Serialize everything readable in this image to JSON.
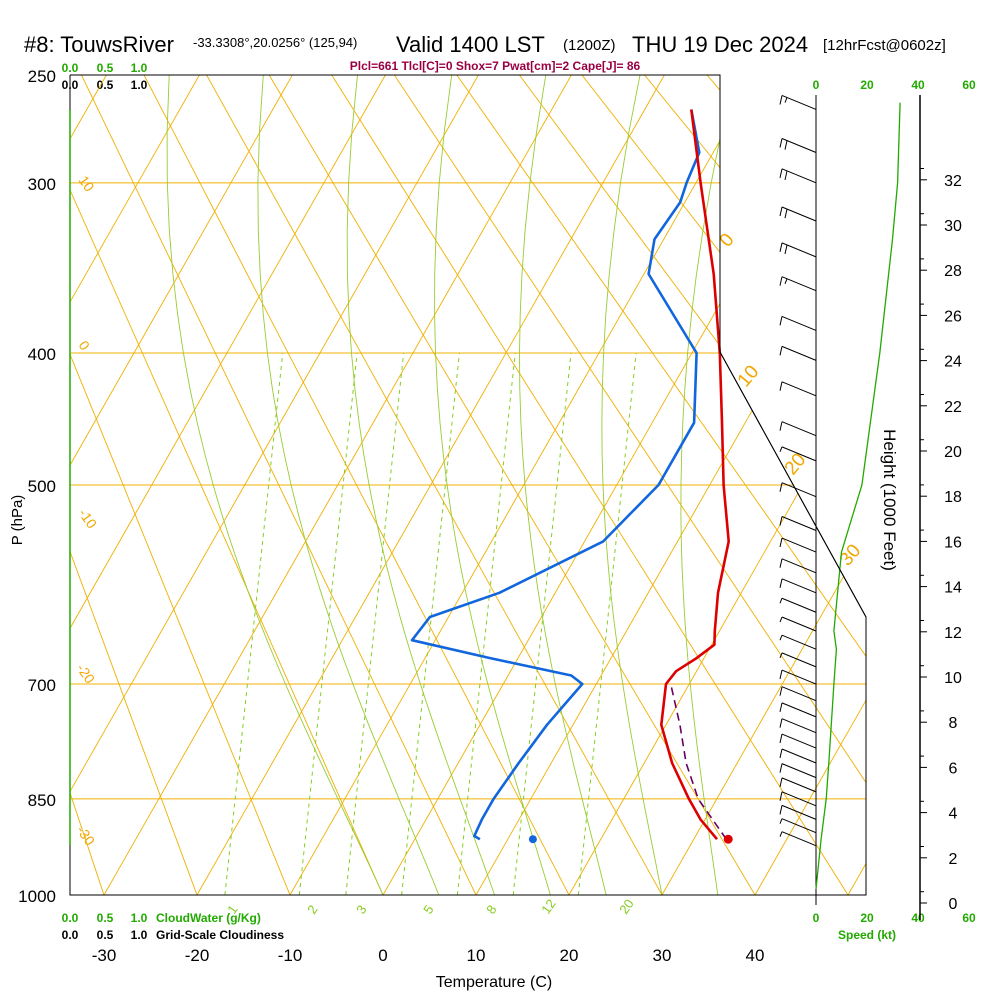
{
  "header": {
    "station": "#8: TouwsRiver",
    "coords": "-33.3308°,20.0256° (125,94)",
    "valid": "Valid 1400 LST",
    "zulu": "(1200Z)",
    "date": "THU 19 Dec 2024",
    "forecast": "[12hrFcst@0602z]",
    "indices": "Plcl=661 Tlcl[C]=0 Shox=7 Pwat[cm]=2 Cape[J]= 86"
  },
  "scales": {
    "cloudwater_ticks": [
      "0.0",
      "0.5",
      "1.0"
    ],
    "cloudiness_ticks": [
      "0.0",
      "0.5",
      "1.0"
    ],
    "cloudwater_label": "CloudWater (g/Kg)",
    "cloudiness_label": "Grid-Scale Cloudiness",
    "speed_ticks": [
      "0",
      "20",
      "40",
      "60"
    ],
    "speed_label": "Speed (kt)"
  },
  "colors": {
    "temperature": "#dd0000",
    "dewpoint": "#1166dd",
    "parcel": "#660066",
    "isotherm": "#f0b000",
    "mixing_ratio": "#88cc22",
    "moist_adiabat": "#99cc33",
    "green_text": "#22aa00",
    "indices": "#990044"
  },
  "chart_data": {
    "type": "skew-t",
    "title": "#8: TouwsRiver Valid 1400 LST (1200Z) THU 19 Dec 2024",
    "xlabel": "Temperature (C)",
    "ylabel": "P (hPa)",
    "y2label": "Height (1000 Feet)",
    "temperature_ticks": [
      -30,
      -20,
      -10,
      0,
      10,
      20,
      30,
      40
    ],
    "temperature_tick_labels": [
      "-30",
      "-20",
      "-10",
      "0",
      "10",
      "20",
      "30",
      "40"
    ],
    "pressure_levels": [
      250,
      300,
      400,
      500,
      700,
      850,
      1000
    ],
    "pressure_tick_labels": [
      "250",
      "300",
      "400",
      "500",
      "700",
      "850",
      "1000"
    ],
    "height_kft_ticks": [
      0,
      2,
      4,
      6,
      8,
      10,
      12,
      14,
      16,
      18,
      20,
      22,
      24,
      26,
      28,
      30,
      32
    ],
    "height_tick_labels": [
      "0",
      "2",
      "4",
      "6",
      "8",
      "10",
      "12",
      "14",
      "16",
      "18",
      "20",
      "22",
      "24",
      "26",
      "28",
      "30",
      "32"
    ],
    "isotherm_labels": [
      "10",
      "0",
      "-10",
      "-20",
      "-30",
      "0",
      "10",
      "20",
      "30"
    ],
    "mixing_ratio_labels": [
      "1",
      "2",
      "3",
      "5",
      "8",
      "12",
      "20"
    ],
    "temperature_profile": [
      {
        "p": 910,
        "t": 32.5
      },
      {
        "p": 880,
        "t": 29.5
      },
      {
        "p": 850,
        "t": 27.0
      },
      {
        "p": 800,
        "t": 23.0
      },
      {
        "p": 750,
        "t": 19.5
      },
      {
        "p": 700,
        "t": 17.5
      },
      {
        "p": 685,
        "t": 17.8
      },
      {
        "p": 670,
        "t": 19.2
      },
      {
        "p": 655,
        "t": 20.3
      },
      {
        "p": 640,
        "t": 19.5
      },
      {
        "p": 600,
        "t": 17.5
      },
      {
        "p": 550,
        "t": 15.5
      },
      {
        "p": 500,
        "t": 11.5
      },
      {
        "p": 450,
        "t": 7.5
      },
      {
        "p": 400,
        "t": 3.0
      },
      {
        "p": 350,
        "t": -2.5
      },
      {
        "p": 300,
        "t": -9.5
      },
      {
        "p": 265,
        "t": -15.0
      }
    ],
    "dewpoint_profile": [
      {
        "p": 910,
        "t": 7.0
      },
      {
        "p": 905,
        "t": 6.2
      },
      {
        "p": 880,
        "t": 6.0
      },
      {
        "p": 850,
        "t": 6.0
      },
      {
        "p": 800,
        "t": 6.5
      },
      {
        "p": 750,
        "t": 7.2
      },
      {
        "p": 700,
        "t": 8.5
      },
      {
        "p": 690,
        "t": 6.8
      },
      {
        "p": 670,
        "t": -3.0
      },
      {
        "p": 650,
        "t": -12.5
      },
      {
        "p": 625,
        "t": -12.0
      },
      {
        "p": 600,
        "t": -6.0
      },
      {
        "p": 550,
        "t": 2.0
      },
      {
        "p": 500,
        "t": 4.5
      },
      {
        "p": 450,
        "t": 4.5
      },
      {
        "p": 400,
        "t": 0.5
      },
      {
        "p": 350,
        "t": -9.5
      },
      {
        "p": 330,
        "t": -11.0
      },
      {
        "p": 310,
        "t": -10.5
      },
      {
        "p": 300,
        "t": -11.0
      },
      {
        "p": 285,
        "t": -11.5
      },
      {
        "p": 265,
        "t": -15.0
      }
    ],
    "parcel_path": [
      {
        "p": 910,
        "t": 33.5
      },
      {
        "p": 850,
        "t": 28.0
      },
      {
        "p": 800,
        "t": 24.5
      },
      {
        "p": 750,
        "t": 21.5
      },
      {
        "p": 700,
        "t": 18.0
      }
    ],
    "surface_temperature": {
      "p": 910,
      "t": 33.7
    },
    "surface_dewpoint": {
      "p": 910,
      "t": 12.7
    },
    "wind_barbs": [
      {
        "p": 265,
        "speed_kt": 15
      },
      {
        "p": 285,
        "speed_kt": 20
      },
      {
        "p": 300,
        "speed_kt": 20
      },
      {
        "p": 320,
        "speed_kt": 20
      },
      {
        "p": 340,
        "speed_kt": 20
      },
      {
        "p": 360,
        "speed_kt": 15
      },
      {
        "p": 385,
        "speed_kt": 10
      },
      {
        "p": 405,
        "speed_kt": 10
      },
      {
        "p": 430,
        "speed_kt": 10
      },
      {
        "p": 460,
        "speed_kt": 10
      },
      {
        "p": 480,
        "speed_kt": 5
      },
      {
        "p": 510,
        "speed_kt": 10
      },
      {
        "p": 540,
        "speed_kt": 10
      },
      {
        "p": 560,
        "speed_kt": 10
      },
      {
        "p": 580,
        "speed_kt": 10
      },
      {
        "p": 600,
        "speed_kt": 10
      },
      {
        "p": 620,
        "speed_kt": 5
      },
      {
        "p": 640,
        "speed_kt": 5
      },
      {
        "p": 660,
        "speed_kt": 5
      },
      {
        "p": 680,
        "speed_kt": 5
      },
      {
        "p": 700,
        "speed_kt": 10
      },
      {
        "p": 720,
        "speed_kt": 10
      },
      {
        "p": 740,
        "speed_kt": 10
      },
      {
        "p": 760,
        "speed_kt": 10
      },
      {
        "p": 780,
        "speed_kt": 10
      },
      {
        "p": 800,
        "speed_kt": 10
      },
      {
        "p": 820,
        "speed_kt": 10
      },
      {
        "p": 840,
        "speed_kt": 10
      },
      {
        "p": 860,
        "speed_kt": 10
      },
      {
        "p": 880,
        "speed_kt": 10
      },
      {
        "p": 900,
        "speed_kt": 5
      },
      {
        "p": 920,
        "speed_kt": 5
      }
    ],
    "wind_speed_profile": [
      {
        "p": 990,
        "speed_kt": 0
      },
      {
        "p": 910,
        "speed_kt": 2
      },
      {
        "p": 850,
        "speed_kt": 4
      },
      {
        "p": 800,
        "speed_kt": 5
      },
      {
        "p": 700,
        "speed_kt": 7
      },
      {
        "p": 660,
        "speed_kt": 8
      },
      {
        "p": 640,
        "speed_kt": 7
      },
      {
        "p": 560,
        "speed_kt": 10
      },
      {
        "p": 500,
        "speed_kt": 18
      },
      {
        "p": 400,
        "speed_kt": 25
      },
      {
        "p": 330,
        "speed_kt": 30
      },
      {
        "p": 300,
        "speed_kt": 32
      },
      {
        "p": 262,
        "speed_kt": 33
      }
    ]
  }
}
